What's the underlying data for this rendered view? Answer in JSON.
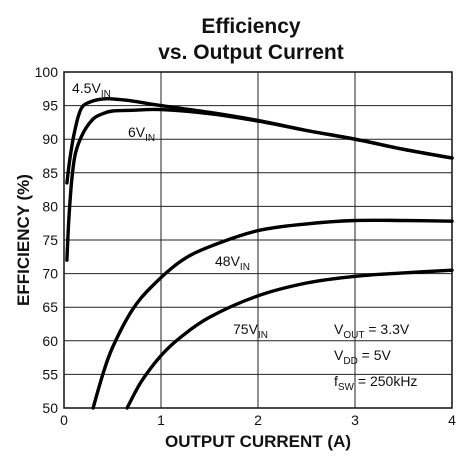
{
  "chart_data": {
    "type": "line",
    "title_lines": [
      "Efficiency",
      "vs. Output Current"
    ],
    "xlabel": "OUTPUT CURRENT (A)",
    "ylabel": "EFFICIENCY (%)",
    "xlim": [
      0,
      4
    ],
    "ylim": [
      50,
      100
    ],
    "x_ticks": [
      "0",
      "1",
      "2",
      "3",
      "4"
    ],
    "y_ticks": [
      "50",
      "55",
      "60",
      "65",
      "70",
      "75",
      "80",
      "85",
      "90",
      "95",
      "100"
    ],
    "grid": true,
    "series": [
      {
        "name": "4.5V",
        "name_main": "4.5V",
        "name_sub": "IN",
        "x": [
          0.03,
          0.06,
          0.1,
          0.15,
          0.2,
          0.3,
          0.4,
          0.5,
          0.7,
          1.0,
          1.5,
          2.0,
          2.5,
          3.0,
          3.5,
          4.0
        ],
        "y": [
          83.5,
          87,
          90.5,
          93.5,
          95,
          95.7,
          96,
          96,
          95.7,
          95,
          94,
          92.8,
          91.3,
          90,
          88.5,
          87.2
        ]
      },
      {
        "name": "6V",
        "name_main": "6V",
        "name_sub": "IN",
        "x": [
          0.03,
          0.05,
          0.08,
          0.12,
          0.2,
          0.3,
          0.4,
          0.5,
          0.7,
          1.0,
          1.5,
          2.0,
          2.5,
          3.0,
          3.5,
          4.0
        ],
        "y": [
          72,
          78,
          84,
          88,
          91,
          93,
          93.8,
          94.2,
          94.3,
          94.4,
          93.8,
          92.7,
          91.3,
          90,
          88.5,
          87.2
        ]
      },
      {
        "name": "48V",
        "name_main": "48V",
        "name_sub": "IN",
        "x": [
          0.3,
          0.4,
          0.5,
          0.7,
          0.9,
          1.2,
          1.5,
          2.0,
          2.5,
          3.0,
          3.5,
          4.0
        ],
        "y": [
          50,
          55,
          59,
          64.5,
          68,
          71.8,
          74,
          76.4,
          77.4,
          77.9,
          77.9,
          77.8
        ]
      },
      {
        "name": "75V",
        "name_main": "75V",
        "name_sub": "IN",
        "x": [
          0.65,
          0.8,
          1.0,
          1.2,
          1.5,
          2.0,
          2.5,
          3.0,
          3.5,
          4.0
        ],
        "y": [
          50,
          54,
          57.8,
          60.5,
          63.5,
          66.7,
          68.6,
          69.6,
          70.1,
          70.5
        ]
      }
    ],
    "annotations": [
      {
        "main": "V",
        "sub": "OUT",
        "tail": " = 3.3V"
      },
      {
        "main": "V",
        "sub": "DD",
        "tail": " = 5V"
      },
      {
        "main": "f",
        "sub": "SW",
        "tail": " = 250kHz"
      }
    ]
  }
}
